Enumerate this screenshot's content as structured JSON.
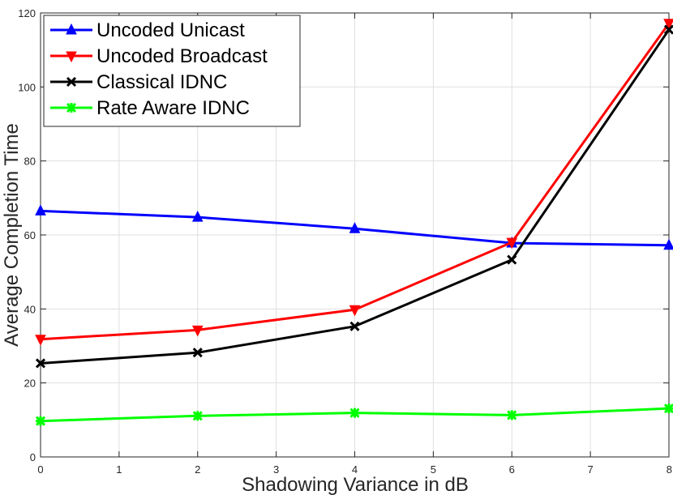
{
  "chart_data": {
    "type": "line",
    "title": "",
    "xlabel": "Shadowing Variance in dB",
    "ylabel": "Average Completion Time",
    "xlim": [
      0,
      8
    ],
    "ylim": [
      0,
      120
    ],
    "xticks": [
      0,
      1,
      2,
      3,
      4,
      5,
      6,
      7,
      8
    ],
    "yticks": [
      0,
      20,
      40,
      60,
      80,
      100,
      120
    ],
    "grid": true,
    "legend_position": "top-left",
    "x": [
      0,
      2,
      4,
      6,
      8
    ],
    "series": [
      {
        "name": "Uncoded Unicast",
        "color": "#0000ff",
        "marker": "triangle-up",
        "values": [
          66.5,
          64.8,
          61.7,
          57.8,
          57.2
        ]
      },
      {
        "name": "Uncoded Broadcast",
        "color": "#ff0000",
        "marker": "triangle-down",
        "values": [
          31.8,
          34.3,
          39.8,
          58.0,
          117.2
        ]
      },
      {
        "name": "Classical IDNC",
        "color": "#000000",
        "marker": "x",
        "values": [
          25.3,
          28.2,
          35.3,
          53.3,
          115.5
        ]
      },
      {
        "name": "Rate Aware IDNC",
        "color": "#00ff00",
        "marker": "asterisk",
        "values": [
          9.7,
          11.1,
          11.9,
          11.3,
          13.1
        ]
      }
    ]
  }
}
